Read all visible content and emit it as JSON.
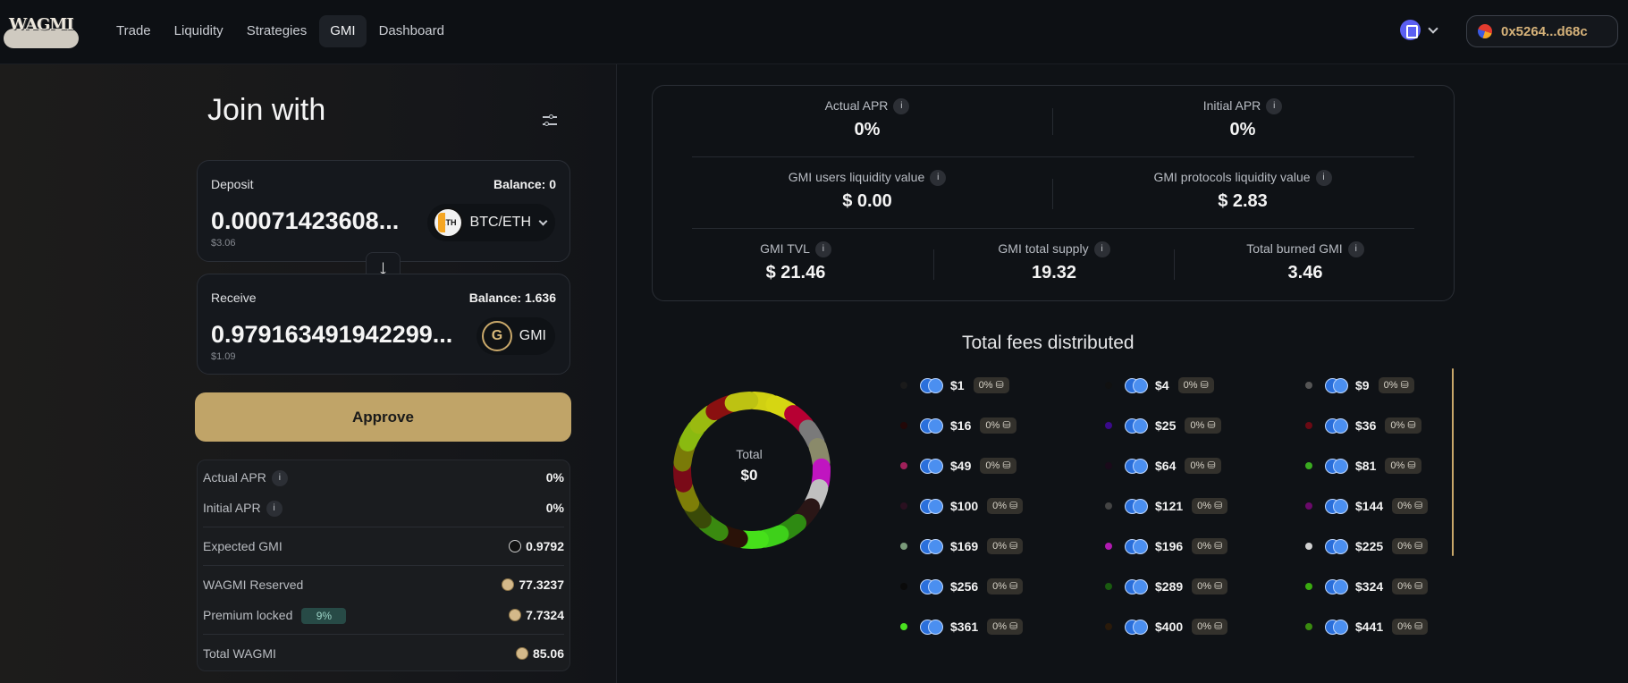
{
  "header": {
    "logo_text": "WAGMI",
    "nav": [
      "Trade",
      "Liquidity",
      "Strategies",
      "GMI",
      "Dashboard"
    ],
    "active_nav": "GMI",
    "wallet_address": "0x5264...d68c"
  },
  "join": {
    "title": "Join with",
    "deposit": {
      "label": "Deposit",
      "balance": "Balance: 0",
      "amount": "0.00071423608...",
      "usd": "$3.06",
      "token": "BTC/ETH"
    },
    "receive": {
      "label": "Receive",
      "balance": "Balance: 1.636",
      "amount": "0.979163491942299...",
      "usd": "$1.09",
      "token": "GMI"
    },
    "arrow": "↓",
    "approve_label": "Approve"
  },
  "info": {
    "actual_apr": {
      "label": "Actual APR",
      "value": "0%"
    },
    "initial_apr": {
      "label": "Initial APR",
      "value": "0%"
    },
    "expected_gmi": {
      "label": "Expected GMI",
      "value": "0.9792"
    },
    "wagmi_reserved": {
      "label": "WAGMI Reserved",
      "value": "77.3237"
    },
    "premium_locked": {
      "label": "Premium locked",
      "pct": "9%",
      "value": "7.7324"
    },
    "total_wagmi": {
      "label": "Total WAGMI",
      "value": "85.06"
    }
  },
  "stats": {
    "actual_apr": {
      "label": "Actual APR",
      "value": "0%"
    },
    "initial_apr": {
      "label": "Initial APR",
      "value": "0%"
    },
    "users_liq": {
      "label": "GMI users liquidity value",
      "value": "$ 0.00"
    },
    "protocols_liq": {
      "label": "GMI protocols liquidity value",
      "value": "$ 2.83"
    },
    "tvl": {
      "label": "GMI TVL",
      "value": "$ 21.46"
    },
    "supply": {
      "label": "GMI total supply",
      "value": "19.32"
    },
    "burned": {
      "label": "Total burned GMI",
      "value": "3.46"
    }
  },
  "fees": {
    "title": "Total fees distributed",
    "total_label": "Total",
    "total_value": "$0",
    "tag_label": "0% ⛁",
    "items": [
      {
        "value": "$1",
        "color": "#1a1a1a"
      },
      {
        "value": "$4",
        "color": "#111111"
      },
      {
        "value": "$9",
        "color": "#555555"
      },
      {
        "value": "$16",
        "color": "#220808"
      },
      {
        "value": "$25",
        "color": "#3a0a8a"
      },
      {
        "value": "$36",
        "color": "#6a0a14"
      },
      {
        "value": "$49",
        "color": "#a0205a"
      },
      {
        "value": "$64",
        "color": "#1a0a1a"
      },
      {
        "value": "$81",
        "color": "#3aaa20"
      },
      {
        "value": "$100",
        "color": "#2a1020"
      },
      {
        "value": "$121",
        "color": "#444444"
      },
      {
        "value": "$144",
        "color": "#6a0a6a"
      },
      {
        "value": "$169",
        "color": "#7a9a7a"
      },
      {
        "value": "$196",
        "color": "#b01ab0"
      },
      {
        "value": "$225",
        "color": "#d0d0d0"
      },
      {
        "value": "$256",
        "color": "#0a0a0a"
      },
      {
        "value": "$289",
        "color": "#1a5a10"
      },
      {
        "value": "$324",
        "color": "#3aaa10"
      },
      {
        "value": "$361",
        "color": "#4ae020"
      },
      {
        "value": "$400",
        "color": "#2a1a0a"
      },
      {
        "value": "$441",
        "color": "#3a8a10"
      }
    ],
    "donut_colors": [
      "#d0d012",
      "#d6d612",
      "#b70033",
      "#7a7a7a",
      "#8a8a6a",
      "#c015c0",
      "#c0c0c0",
      "#2a1616",
      "#2e8a12",
      "#3ed01a",
      "#46e01a",
      "#2a1208",
      "#3a8a10",
      "#3a4a08",
      "#7e7e08",
      "#7a0a18",
      "#7a7a08",
      "#8aba10",
      "#9aba10",
      "#8a1010",
      "#bdc212"
    ]
  }
}
